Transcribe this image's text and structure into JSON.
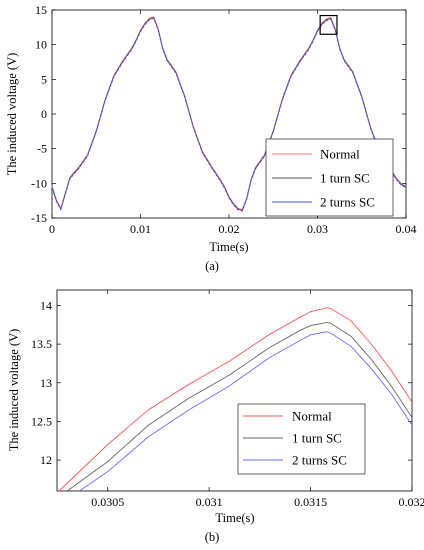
{
  "chart_data": [
    {
      "type": "line",
      "panel_label": "(a)",
      "xlabel": "Time(s)",
      "ylabel": "The induced voltage (V)",
      "xlim": [
        0,
        0.04
      ],
      "ylim": [
        -15,
        15
      ],
      "xticks": [
        "0",
        "0.01",
        "0.02",
        "0.03",
        "0.04"
      ],
      "yticks": [
        "-15",
        "-10",
        "-5",
        "0",
        "5",
        "10",
        "15"
      ],
      "legend_position": "bottom-right",
      "series": [
        {
          "name": "Normal",
          "color": "#ff6b6b",
          "offset": 0.12
        },
        {
          "name": "1 turn SC",
          "color": "#555555",
          "offset": 0.0
        },
        {
          "name": "2 turns SC",
          "color": "#4d4dff",
          "offset": -0.12
        }
      ],
      "x": [
        0,
        0.0005,
        0.001,
        0.0015,
        0.002,
        0.0025,
        0.003,
        0.004,
        0.005,
        0.006,
        0.007,
        0.008,
        0.009,
        0.0095,
        0.01,
        0.0105,
        0.011,
        0.0115,
        0.012,
        0.0125,
        0.013,
        0.014,
        0.015,
        0.016,
        0.017,
        0.018,
        0.019,
        0.0195,
        0.02,
        0.0205,
        0.021,
        0.0215,
        0.022,
        0.0225,
        0.023,
        0.024,
        0.025,
        0.026,
        0.027,
        0.028,
        0.029,
        0.0295,
        0.03,
        0.0305,
        0.031,
        0.0315,
        0.032,
        0.0325,
        0.033,
        0.034,
        0.035,
        0.036,
        0.037,
        0.038,
        0.039,
        0.0395,
        0.04
      ],
      "y": [
        -10.5,
        -12.5,
        -13.7,
        -11.5,
        -9.3,
        -8.5,
        -7.8,
        -6.0,
        -2.5,
        2.0,
        5.5,
        7.6,
        9.4,
        10.6,
        12.0,
        13.0,
        13.7,
        13.9,
        12.2,
        9.5,
        7.8,
        6.0,
        2.5,
        -2.0,
        -5.5,
        -7.6,
        -9.5,
        -10.6,
        -12.0,
        -13.0,
        -13.7,
        -13.9,
        -12.2,
        -9.5,
        -7.8,
        -6.0,
        -2.5,
        2.0,
        5.5,
        7.6,
        9.4,
        10.6,
        12.0,
        13.0,
        13.6,
        13.8,
        12.2,
        9.5,
        7.8,
        6.0,
        2.5,
        -2.0,
        -5.5,
        -7.6,
        -9.5,
        -10.2,
        -10.5
      ],
      "zoom_box": {
        "x": [
          0.0303,
          0.0322
        ],
        "y": [
          11.5,
          14.2
        ]
      }
    },
    {
      "type": "line",
      "panel_label": "(b)",
      "xlabel": "Time(s)",
      "ylabel": "The induced voltage (V)",
      "xlim": [
        0.03025,
        0.032
      ],
      "ylim": [
        11.6,
        14.2
      ],
      "xticks": [
        "0.0305",
        "0.031",
        "0.0315",
        "0.032"
      ],
      "yticks": [
        "12",
        "12.5",
        "13",
        "13.5",
        "14"
      ],
      "legend_position": "bottom-center",
      "series": [
        {
          "name": "Normal",
          "color": "#ff5555",
          "x": [
            0.03026,
            0.0305,
            0.0307,
            0.0309,
            0.0311,
            0.0313,
            0.03145,
            0.0315,
            0.03158,
            0.0316,
            0.0317,
            0.0318,
            0.0319,
            0.032
          ],
          "y": [
            11.6,
            12.2,
            12.65,
            12.98,
            13.28,
            13.63,
            13.85,
            13.92,
            13.97,
            13.96,
            13.8,
            13.5,
            13.15,
            12.75
          ]
        },
        {
          "name": "1 turn SC",
          "color": "#666666",
          "x": [
            0.0303,
            0.0305,
            0.0307,
            0.0309,
            0.0311,
            0.0313,
            0.03145,
            0.0315,
            0.03158,
            0.0316,
            0.0317,
            0.0318,
            0.0319,
            0.032
          ],
          "y": [
            11.6,
            11.98,
            12.45,
            12.8,
            13.1,
            13.46,
            13.68,
            13.74,
            13.78,
            13.77,
            13.6,
            13.3,
            12.95,
            12.55
          ]
        },
        {
          "name": "2 turns SC",
          "color": "#6b6bff",
          "x": [
            0.03036,
            0.0305,
            0.0307,
            0.0309,
            0.0311,
            0.0313,
            0.03145,
            0.0315,
            0.03158,
            0.0316,
            0.0317,
            0.0318,
            0.0319,
            0.032
          ],
          "y": [
            11.6,
            11.85,
            12.3,
            12.65,
            12.96,
            13.33,
            13.55,
            13.62,
            13.66,
            13.64,
            13.47,
            13.18,
            12.85,
            12.45
          ]
        }
      ]
    }
  ]
}
